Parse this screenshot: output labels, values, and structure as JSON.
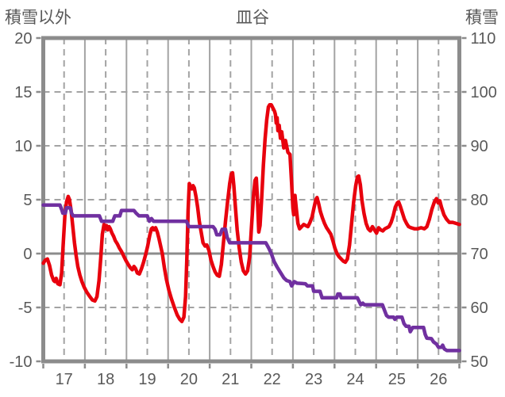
{
  "header": {
    "left_axis_title": "積雪以外",
    "chart_title": "皿谷",
    "right_axis_title": "積雪"
  },
  "colors": {
    "temperature_line": "#e8000d",
    "snow_line": "#7030a0",
    "grid": "#a3a3a3",
    "frame": "#8c8c8c",
    "text": "#595959"
  },
  "chart_data": {
    "type": "line",
    "title": "皿谷",
    "x_axis": {
      "min": 17,
      "max": 27,
      "tick_labels": [
        "17",
        "18",
        "19",
        "20",
        "21",
        "22",
        "23",
        "24",
        "25",
        "26"
      ],
      "grid": "solid-daily-dashed-half-daily"
    },
    "left_axis": {
      "label": "積雪以外",
      "min": -10,
      "max": 20,
      "ticks": [
        20,
        15,
        10,
        5,
        0,
        -5,
        -10
      ]
    },
    "right_axis": {
      "label": "積雪",
      "min": 50,
      "max": 110,
      "ticks": [
        110,
        100,
        90,
        80,
        70,
        60,
        50
      ]
    },
    "legend": "none",
    "series": [
      {
        "name": "積雪以外",
        "axis": "left",
        "color": "#e8000d",
        "points": [
          [
            17.0,
            -0.9
          ],
          [
            17.05,
            -0.6
          ],
          [
            17.1,
            -0.5
          ],
          [
            17.15,
            -1.1
          ],
          [
            17.2,
            -2.0
          ],
          [
            17.25,
            -2.5
          ],
          [
            17.28,
            -2.6
          ],
          [
            17.31,
            -2.3
          ],
          [
            17.35,
            -2.8
          ],
          [
            17.4,
            -2.9
          ],
          [
            17.44,
            -1.8
          ],
          [
            17.48,
            1.0
          ],
          [
            17.52,
            3.5
          ],
          [
            17.56,
            4.8
          ],
          [
            17.6,
            5.3
          ],
          [
            17.63,
            5.0
          ],
          [
            17.67,
            4.0
          ],
          [
            17.71,
            2.5
          ],
          [
            17.75,
            1.0
          ],
          [
            17.79,
            -0.2
          ],
          [
            17.83,
            -1.2
          ],
          [
            17.88,
            -2.0
          ],
          [
            17.93,
            -2.6
          ],
          [
            17.98,
            -3.1
          ],
          [
            18.05,
            -3.6
          ],
          [
            18.12,
            -4.0
          ],
          [
            18.18,
            -4.3
          ],
          [
            18.24,
            -4.4
          ],
          [
            18.29,
            -4.0
          ],
          [
            18.34,
            -2.5
          ],
          [
            18.38,
            -0.5
          ],
          [
            18.42,
            1.8
          ],
          [
            18.46,
            2.7
          ],
          [
            18.49,
            2.3
          ],
          [
            18.52,
            2.6
          ],
          [
            18.55,
            2.2
          ],
          [
            18.58,
            2.5
          ],
          [
            18.61,
            2.3
          ],
          [
            18.65,
            1.9
          ],
          [
            18.69,
            1.6
          ],
          [
            18.73,
            1.2
          ],
          [
            18.78,
            0.9
          ],
          [
            18.83,
            0.5
          ],
          [
            18.88,
            0.2
          ],
          [
            18.93,
            -0.2
          ],
          [
            18.98,
            -0.6
          ],
          [
            19.04,
            -1.0
          ],
          [
            19.09,
            -1.3
          ],
          [
            19.14,
            -1.5
          ],
          [
            19.18,
            -1.2
          ],
          [
            19.22,
            -1.4
          ],
          [
            19.26,
            -1.8
          ],
          [
            19.31,
            -1.9
          ],
          [
            19.36,
            -1.4
          ],
          [
            19.41,
            -0.8
          ],
          [
            19.46,
            -0.1
          ],
          [
            19.51,
            0.7
          ],
          [
            19.56,
            1.7
          ],
          [
            19.6,
            2.3
          ],
          [
            19.63,
            2.4
          ],
          [
            19.66,
            2.2
          ],
          [
            19.7,
            2.4
          ],
          [
            19.74,
            2.0
          ],
          [
            19.78,
            1.4
          ],
          [
            19.82,
            0.7
          ],
          [
            19.86,
            0.0
          ],
          [
            19.91,
            -1.3
          ],
          [
            19.96,
            -2.4
          ],
          [
            20.02,
            -3.4
          ],
          [
            20.08,
            -4.2
          ],
          [
            20.15,
            -5.0
          ],
          [
            20.22,
            -5.7
          ],
          [
            20.28,
            -6.1
          ],
          [
            20.33,
            -6.3
          ],
          [
            20.38,
            -5.9
          ],
          [
            20.42,
            -4.0
          ],
          [
            20.45,
            -0.5
          ],
          [
            20.48,
            4.0
          ],
          [
            20.51,
            6.5
          ],
          [
            20.54,
            6.2
          ],
          [
            20.57,
            6.0
          ],
          [
            20.6,
            6.3
          ],
          [
            20.63,
            6.1
          ],
          [
            20.67,
            5.3
          ],
          [
            20.71,
            4.3
          ],
          [
            20.75,
            3.0
          ],
          [
            20.79,
            2.1
          ],
          [
            20.84,
            1.0
          ],
          [
            20.89,
            0.7
          ],
          [
            20.93,
            0.8
          ],
          [
            20.98,
            0.3
          ],
          [
            21.03,
            -0.6
          ],
          [
            21.08,
            -1.2
          ],
          [
            21.13,
            -1.7
          ],
          [
            21.18,
            -2.0
          ],
          [
            21.23,
            -2.1
          ],
          [
            21.28,
            -1.0
          ],
          [
            21.33,
            1.0
          ],
          [
            21.38,
            3.0
          ],
          [
            21.43,
            4.8
          ],
          [
            21.48,
            6.5
          ],
          [
            21.52,
            7.4
          ],
          [
            21.55,
            7.5
          ],
          [
            21.58,
            6.3
          ],
          [
            21.62,
            4.2
          ],
          [
            21.66,
            2.2
          ],
          [
            21.71,
            0.5
          ],
          [
            21.76,
            -0.8
          ],
          [
            21.81,
            -1.6
          ],
          [
            21.86,
            -1.9
          ],
          [
            21.91,
            -1.6
          ],
          [
            21.96,
            -0.3
          ],
          [
            22.0,
            2.2
          ],
          [
            22.05,
            5.2
          ],
          [
            22.09,
            6.8
          ],
          [
            22.12,
            7.0
          ],
          [
            22.15,
            4.8
          ],
          [
            22.18,
            2.0
          ],
          [
            22.21,
            2.6
          ],
          [
            22.25,
            5.2
          ],
          [
            22.29,
            8.2
          ],
          [
            22.33,
            10.6
          ],
          [
            22.37,
            12.4
          ],
          [
            22.41,
            13.6
          ],
          [
            22.44,
            13.8
          ],
          [
            22.48,
            13.8
          ],
          [
            22.52,
            13.5
          ],
          [
            22.56,
            13.2
          ],
          [
            22.58,
            12.9
          ],
          [
            22.6,
            12.1
          ],
          [
            22.62,
            12.6
          ],
          [
            22.64,
            11.4
          ],
          [
            22.67,
            11.9
          ],
          [
            22.7,
            10.7
          ],
          [
            22.73,
            11.3
          ],
          [
            22.78,
            9.8
          ],
          [
            22.82,
            10.5
          ],
          [
            22.88,
            9.4
          ],
          [
            22.93,
            9.2
          ],
          [
            22.97,
            6.5
          ],
          [
            23.0,
            4.2
          ],
          [
            23.02,
            3.6
          ],
          [
            23.05,
            5.4
          ],
          [
            23.08,
            4.2
          ],
          [
            23.12,
            2.8
          ],
          [
            23.16,
            2.3
          ],
          [
            23.21,
            2.5
          ],
          [
            23.26,
            2.7
          ],
          [
            23.31,
            2.6
          ],
          [
            23.36,
            2.5
          ],
          [
            23.41,
            2.9
          ],
          [
            23.46,
            3.4
          ],
          [
            23.51,
            4.3
          ],
          [
            23.55,
            5.0
          ],
          [
            23.58,
            5.2
          ],
          [
            23.62,
            4.6
          ],
          [
            23.66,
            3.9
          ],
          [
            23.71,
            3.3
          ],
          [
            23.76,
            2.8
          ],
          [
            23.81,
            2.4
          ],
          [
            23.86,
            2.1
          ],
          [
            23.91,
            1.8
          ],
          [
            23.96,
            1.2
          ],
          [
            24.01,
            0.5
          ],
          [
            24.06,
            0.0
          ],
          [
            24.11,
            -0.3
          ],
          [
            24.16,
            -0.5
          ],
          [
            24.21,
            -0.7
          ],
          [
            24.26,
            -0.8
          ],
          [
            24.31,
            -0.5
          ],
          [
            24.36,
            0.8
          ],
          [
            24.41,
            2.8
          ],
          [
            24.46,
            4.8
          ],
          [
            24.51,
            6.3
          ],
          [
            24.55,
            7.1
          ],
          [
            24.58,
            7.2
          ],
          [
            24.62,
            6.4
          ],
          [
            24.66,
            4.9
          ],
          [
            24.71,
            3.7
          ],
          [
            24.76,
            2.8
          ],
          [
            24.81,
            2.3
          ],
          [
            24.86,
            2.1
          ],
          [
            24.91,
            2.5
          ],
          [
            24.96,
            2.2
          ],
          [
            25.01,
            1.9
          ],
          [
            25.06,
            2.4
          ],
          [
            25.11,
            2.2
          ],
          [
            25.16,
            2.1
          ],
          [
            25.21,
            2.3
          ],
          [
            25.26,
            2.4
          ],
          [
            25.31,
            2.5
          ],
          [
            25.36,
            2.9
          ],
          [
            25.41,
            3.5
          ],
          [
            25.46,
            4.3
          ],
          [
            25.51,
            4.7
          ],
          [
            25.54,
            4.8
          ],
          [
            25.58,
            4.4
          ],
          [
            25.63,
            3.8
          ],
          [
            25.68,
            3.2
          ],
          [
            25.73,
            2.8
          ],
          [
            25.78,
            2.5
          ],
          [
            25.84,
            2.4
          ],
          [
            25.92,
            2.3
          ],
          [
            26.0,
            2.3
          ],
          [
            26.08,
            2.4
          ],
          [
            26.16,
            2.3
          ],
          [
            26.22,
            2.5
          ],
          [
            26.28,
            3.2
          ],
          [
            26.34,
            4.1
          ],
          [
            26.4,
            4.8
          ],
          [
            26.45,
            5.1
          ],
          [
            26.49,
            4.7
          ],
          [
            26.53,
            4.9
          ],
          [
            26.57,
            4.3
          ],
          [
            26.63,
            3.6
          ],
          [
            26.69,
            3.2
          ],
          [
            26.76,
            2.9
          ],
          [
            26.84,
            2.9
          ],
          [
            26.92,
            2.8
          ],
          [
            27.0,
            2.7
          ]
        ]
      },
      {
        "name": "積雪",
        "axis": "right",
        "color": "#7030a0",
        "points": [
          [
            17.0,
            79
          ],
          [
            17.4,
            79
          ],
          [
            17.45,
            78
          ],
          [
            17.47,
            77.5
          ],
          [
            17.53,
            77.5
          ],
          [
            17.56,
            78.5
          ],
          [
            17.65,
            78.5
          ],
          [
            17.68,
            77.5
          ],
          [
            17.72,
            77
          ],
          [
            18.35,
            77
          ],
          [
            18.4,
            76
          ],
          [
            18.67,
            76
          ],
          [
            18.72,
            77
          ],
          [
            18.84,
            77
          ],
          [
            18.88,
            78
          ],
          [
            19.18,
            78
          ],
          [
            19.23,
            77.5
          ],
          [
            19.3,
            77
          ],
          [
            19.5,
            77
          ],
          [
            19.55,
            76
          ],
          [
            19.6,
            76.5
          ],
          [
            19.65,
            76
          ],
          [
            19.72,
            76
          ],
          [
            20.44,
            76
          ],
          [
            20.5,
            75
          ],
          [
            21.08,
            75
          ],
          [
            21.13,
            74.5
          ],
          [
            21.17,
            73.5
          ],
          [
            21.25,
            73.5
          ],
          [
            21.3,
            74.5
          ],
          [
            21.38,
            74.5
          ],
          [
            21.42,
            73
          ],
          [
            21.48,
            72
          ],
          [
            22.35,
            72
          ],
          [
            22.42,
            71
          ],
          [
            22.48,
            70
          ],
          [
            22.55,
            68.5
          ],
          [
            22.62,
            67.5
          ],
          [
            22.7,
            66.5
          ],
          [
            22.78,
            65.5
          ],
          [
            22.85,
            65
          ],
          [
            22.93,
            64.8
          ],
          [
            22.97,
            64
          ],
          [
            23.03,
            64.8
          ],
          [
            23.1,
            64.5
          ],
          [
            23.3,
            64.4
          ],
          [
            23.35,
            64
          ],
          [
            23.47,
            64
          ],
          [
            23.5,
            63
          ],
          [
            23.65,
            63
          ],
          [
            23.7,
            61.8
          ],
          [
            24.05,
            61.8
          ],
          [
            24.08,
            62.5
          ],
          [
            24.13,
            62.5
          ],
          [
            24.16,
            61.8
          ],
          [
            24.55,
            61.8
          ],
          [
            24.6,
            61
          ],
          [
            24.63,
            60.5
          ],
          [
            24.68,
            60.8
          ],
          [
            24.72,
            60.5
          ],
          [
            25.15,
            60.5
          ],
          [
            25.2,
            59.5
          ],
          [
            25.25,
            58.5
          ],
          [
            25.3,
            58.2
          ],
          [
            25.42,
            58.2
          ],
          [
            25.45,
            57.8
          ],
          [
            25.5,
            58.2
          ],
          [
            25.62,
            58.2
          ],
          [
            25.67,
            57
          ],
          [
            25.72,
            56.5
          ],
          [
            25.79,
            56.5
          ],
          [
            25.82,
            55.5
          ],
          [
            25.88,
            56.3
          ],
          [
            26.14,
            56.3
          ],
          [
            26.18,
            55
          ],
          [
            26.22,
            54.3
          ],
          [
            26.33,
            54.2
          ],
          [
            26.38,
            53.6
          ],
          [
            26.45,
            53.2
          ],
          [
            26.5,
            52.6
          ],
          [
            26.57,
            52.6
          ],
          [
            26.6,
            53
          ],
          [
            26.64,
            52.3
          ],
          [
            26.7,
            52
          ],
          [
            27.0,
            52
          ]
        ]
      }
    ]
  }
}
